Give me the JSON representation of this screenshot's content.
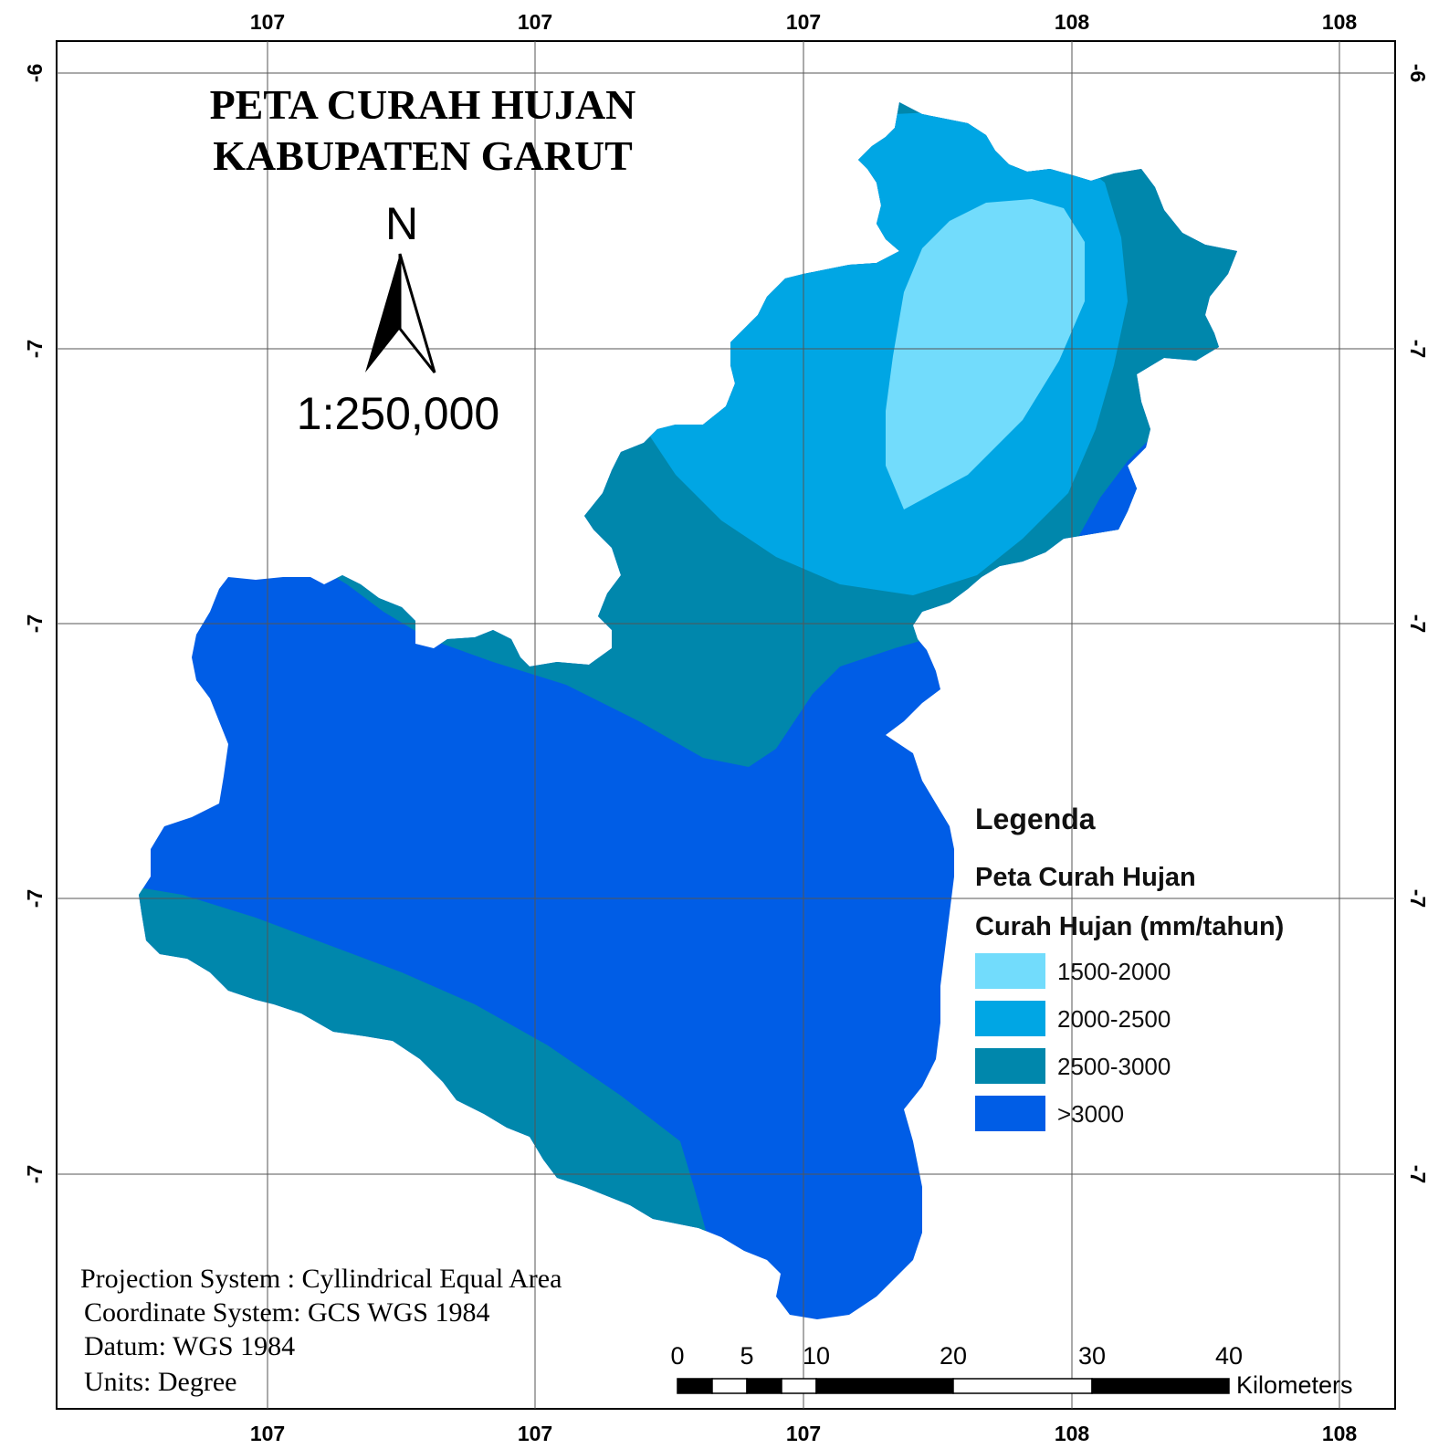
{
  "title": {
    "line1": "PETA CURAH HUJAN",
    "line2": "KABUPATEN GARUT"
  },
  "north_arrow": {
    "label": "N"
  },
  "scale_ratio": "1:250,000",
  "graticule": {
    "longitudes": [
      "107",
      "107",
      "107",
      "108",
      "108"
    ],
    "latitudes": [
      "-6",
      "-7",
      "-7",
      "-7",
      "-7"
    ]
  },
  "legend": {
    "heading": "Legenda",
    "layer_name": "Peta Curah Hujan",
    "field_name": "Curah Hujan (mm/tahun)",
    "classes": [
      {
        "label": "1500-2000",
        "color": "#72dcfc"
      },
      {
        "label": "2000-2500",
        "color": "#00a6e4"
      },
      {
        "label": "2500-3000",
        "color": "#0087ac"
      },
      {
        "label": ">3000",
        "color": "#005de6"
      }
    ]
  },
  "info": {
    "projection": "Projection System : Cyllindrical Equal Area",
    "coordinate": "Coordinate System: GCS WGS 1984",
    "datum": "Datum: WGS 1984",
    "units": "Units: Degree"
  },
  "scale_bar": {
    "ticks": [
      "0",
      "5",
      "10",
      "20",
      "30",
      "40"
    ],
    "unit": "Kilometers"
  }
}
